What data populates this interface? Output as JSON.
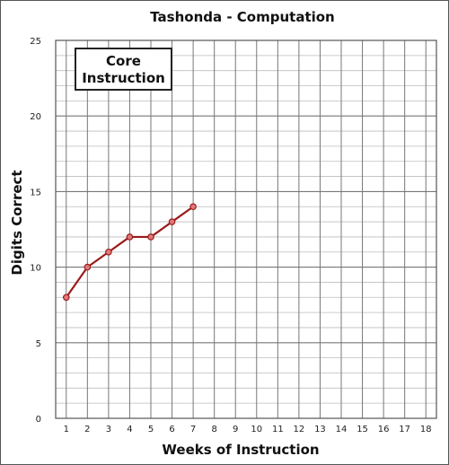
{
  "chart_data": {
    "type": "line",
    "title": "Tashonda - Computation",
    "xlabel": "Weeks of Instruction",
    "ylabel": "Digits Correct",
    "xlim": [
      0.5,
      18.5
    ],
    "ylim": [
      0,
      25
    ],
    "x_ticks": [
      "1",
      "2",
      "3",
      "4",
      "5",
      "6",
      "7",
      "8",
      "9",
      "10",
      "11",
      "12",
      "13",
      "14",
      "15",
      "16",
      "17",
      "18"
    ],
    "y_ticks": [
      "0",
      "5",
      "10",
      "15",
      "20",
      "25"
    ],
    "y_minor_step": 1,
    "grid": true,
    "annotation": {
      "line1": "Core",
      "line2": "Instruction"
    },
    "series": [
      {
        "x": [
          1,
          2,
          3,
          4,
          5,
          6,
          7
        ],
        "y": [
          8,
          10,
          11,
          12,
          12,
          13,
          14
        ],
        "color": "#9b1b1b",
        "marker_color": "#e07a7a"
      }
    ]
  }
}
